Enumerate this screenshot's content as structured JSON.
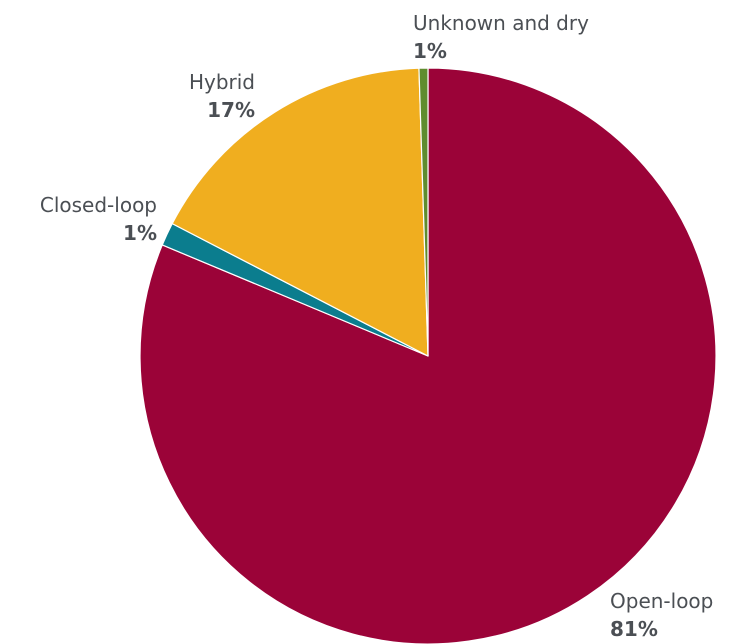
{
  "chart_data": {
    "type": "pie",
    "slices": [
      {
        "label": "Open-loop",
        "value_label": "81%",
        "value": 81.3,
        "color": "#9b0338"
      },
      {
        "label": "Closed-loop",
        "value_label": "1%",
        "value": 1.3,
        "color": "#0b7d8e"
      },
      {
        "label": "Hybrid",
        "value_label": "17%",
        "value": 16.9,
        "color": "#f0ae1f"
      },
      {
        "label": "Unknown and dry",
        "value_label": "1%",
        "value": 0.5,
        "color": "#5f8c2f"
      }
    ],
    "legend": "none"
  }
}
